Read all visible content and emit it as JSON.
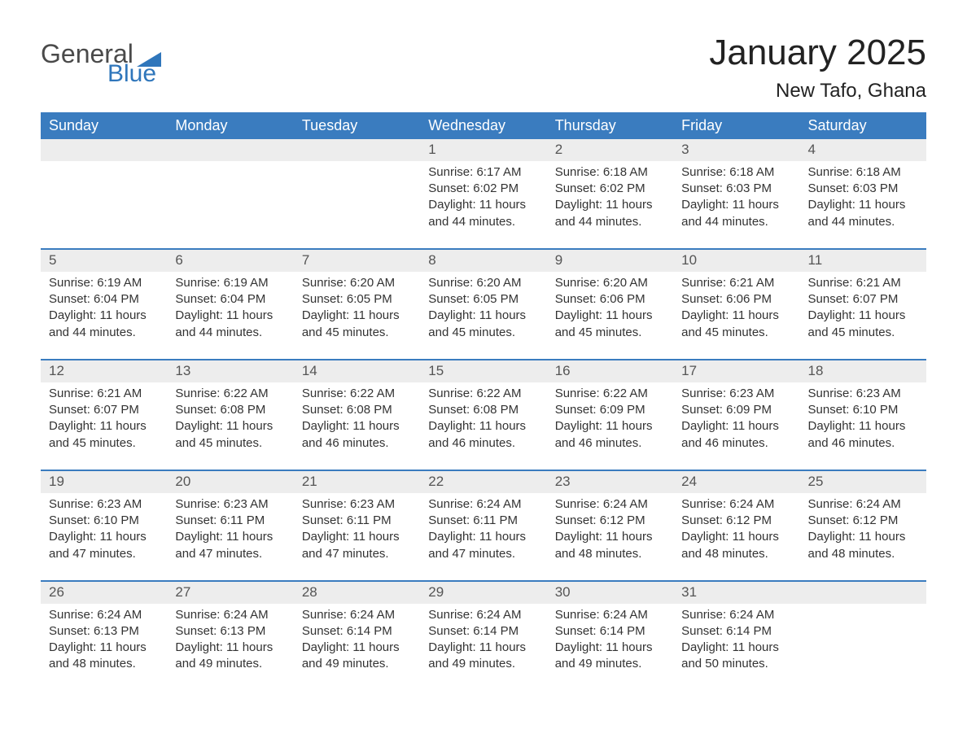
{
  "logo": {
    "general": "General",
    "blue": "Blue",
    "flag_color": "#2f76bb"
  },
  "title": "January 2025",
  "location": "New Tafo, Ghana",
  "colors": {
    "header_bg": "#3a7cbf",
    "header_text": "#ffffff",
    "daynum_bg": "#ededed",
    "daynum_text": "#555555",
    "body_text": "#333333",
    "week_border": "#3a7cbf",
    "page_bg": "#ffffff"
  },
  "typography": {
    "title_fontsize": 44,
    "location_fontsize": 24,
    "header_fontsize": 18,
    "daynum_fontsize": 17,
    "cell_fontsize": 15
  },
  "day_headers": [
    "Sunday",
    "Monday",
    "Tuesday",
    "Wednesday",
    "Thursday",
    "Friday",
    "Saturday"
  ],
  "weeks": [
    [
      null,
      null,
      null,
      {
        "n": "1",
        "sunrise": "Sunrise: 6:17 AM",
        "sunset": "Sunset: 6:02 PM",
        "daylight": "Daylight: 11 hours and 44 minutes."
      },
      {
        "n": "2",
        "sunrise": "Sunrise: 6:18 AM",
        "sunset": "Sunset: 6:02 PM",
        "daylight": "Daylight: 11 hours and 44 minutes."
      },
      {
        "n": "3",
        "sunrise": "Sunrise: 6:18 AM",
        "sunset": "Sunset: 6:03 PM",
        "daylight": "Daylight: 11 hours and 44 minutes."
      },
      {
        "n": "4",
        "sunrise": "Sunrise: 6:18 AM",
        "sunset": "Sunset: 6:03 PM",
        "daylight": "Daylight: 11 hours and 44 minutes."
      }
    ],
    [
      {
        "n": "5",
        "sunrise": "Sunrise: 6:19 AM",
        "sunset": "Sunset: 6:04 PM",
        "daylight": "Daylight: 11 hours and 44 minutes."
      },
      {
        "n": "6",
        "sunrise": "Sunrise: 6:19 AM",
        "sunset": "Sunset: 6:04 PM",
        "daylight": "Daylight: 11 hours and 44 minutes."
      },
      {
        "n": "7",
        "sunrise": "Sunrise: 6:20 AM",
        "sunset": "Sunset: 6:05 PM",
        "daylight": "Daylight: 11 hours and 45 minutes."
      },
      {
        "n": "8",
        "sunrise": "Sunrise: 6:20 AM",
        "sunset": "Sunset: 6:05 PM",
        "daylight": "Daylight: 11 hours and 45 minutes."
      },
      {
        "n": "9",
        "sunrise": "Sunrise: 6:20 AM",
        "sunset": "Sunset: 6:06 PM",
        "daylight": "Daylight: 11 hours and 45 minutes."
      },
      {
        "n": "10",
        "sunrise": "Sunrise: 6:21 AM",
        "sunset": "Sunset: 6:06 PM",
        "daylight": "Daylight: 11 hours and 45 minutes."
      },
      {
        "n": "11",
        "sunrise": "Sunrise: 6:21 AM",
        "sunset": "Sunset: 6:07 PM",
        "daylight": "Daylight: 11 hours and 45 minutes."
      }
    ],
    [
      {
        "n": "12",
        "sunrise": "Sunrise: 6:21 AM",
        "sunset": "Sunset: 6:07 PM",
        "daylight": "Daylight: 11 hours and 45 minutes."
      },
      {
        "n": "13",
        "sunrise": "Sunrise: 6:22 AM",
        "sunset": "Sunset: 6:08 PM",
        "daylight": "Daylight: 11 hours and 45 minutes."
      },
      {
        "n": "14",
        "sunrise": "Sunrise: 6:22 AM",
        "sunset": "Sunset: 6:08 PM",
        "daylight": "Daylight: 11 hours and 46 minutes."
      },
      {
        "n": "15",
        "sunrise": "Sunrise: 6:22 AM",
        "sunset": "Sunset: 6:08 PM",
        "daylight": "Daylight: 11 hours and 46 minutes."
      },
      {
        "n": "16",
        "sunrise": "Sunrise: 6:22 AM",
        "sunset": "Sunset: 6:09 PM",
        "daylight": "Daylight: 11 hours and 46 minutes."
      },
      {
        "n": "17",
        "sunrise": "Sunrise: 6:23 AM",
        "sunset": "Sunset: 6:09 PM",
        "daylight": "Daylight: 11 hours and 46 minutes."
      },
      {
        "n": "18",
        "sunrise": "Sunrise: 6:23 AM",
        "sunset": "Sunset: 6:10 PM",
        "daylight": "Daylight: 11 hours and 46 minutes."
      }
    ],
    [
      {
        "n": "19",
        "sunrise": "Sunrise: 6:23 AM",
        "sunset": "Sunset: 6:10 PM",
        "daylight": "Daylight: 11 hours and 47 minutes."
      },
      {
        "n": "20",
        "sunrise": "Sunrise: 6:23 AM",
        "sunset": "Sunset: 6:11 PM",
        "daylight": "Daylight: 11 hours and 47 minutes."
      },
      {
        "n": "21",
        "sunrise": "Sunrise: 6:23 AM",
        "sunset": "Sunset: 6:11 PM",
        "daylight": "Daylight: 11 hours and 47 minutes."
      },
      {
        "n": "22",
        "sunrise": "Sunrise: 6:24 AM",
        "sunset": "Sunset: 6:11 PM",
        "daylight": "Daylight: 11 hours and 47 minutes."
      },
      {
        "n": "23",
        "sunrise": "Sunrise: 6:24 AM",
        "sunset": "Sunset: 6:12 PM",
        "daylight": "Daylight: 11 hours and 48 minutes."
      },
      {
        "n": "24",
        "sunrise": "Sunrise: 6:24 AM",
        "sunset": "Sunset: 6:12 PM",
        "daylight": "Daylight: 11 hours and 48 minutes."
      },
      {
        "n": "25",
        "sunrise": "Sunrise: 6:24 AM",
        "sunset": "Sunset: 6:12 PM",
        "daylight": "Daylight: 11 hours and 48 minutes."
      }
    ],
    [
      {
        "n": "26",
        "sunrise": "Sunrise: 6:24 AM",
        "sunset": "Sunset: 6:13 PM",
        "daylight": "Daylight: 11 hours and 48 minutes."
      },
      {
        "n": "27",
        "sunrise": "Sunrise: 6:24 AM",
        "sunset": "Sunset: 6:13 PM",
        "daylight": "Daylight: 11 hours and 49 minutes."
      },
      {
        "n": "28",
        "sunrise": "Sunrise: 6:24 AM",
        "sunset": "Sunset: 6:14 PM",
        "daylight": "Daylight: 11 hours and 49 minutes."
      },
      {
        "n": "29",
        "sunrise": "Sunrise: 6:24 AM",
        "sunset": "Sunset: 6:14 PM",
        "daylight": "Daylight: 11 hours and 49 minutes."
      },
      {
        "n": "30",
        "sunrise": "Sunrise: 6:24 AM",
        "sunset": "Sunset: 6:14 PM",
        "daylight": "Daylight: 11 hours and 49 minutes."
      },
      {
        "n": "31",
        "sunrise": "Sunrise: 6:24 AM",
        "sunset": "Sunset: 6:14 PM",
        "daylight": "Daylight: 11 hours and 50 minutes."
      },
      null
    ]
  ]
}
